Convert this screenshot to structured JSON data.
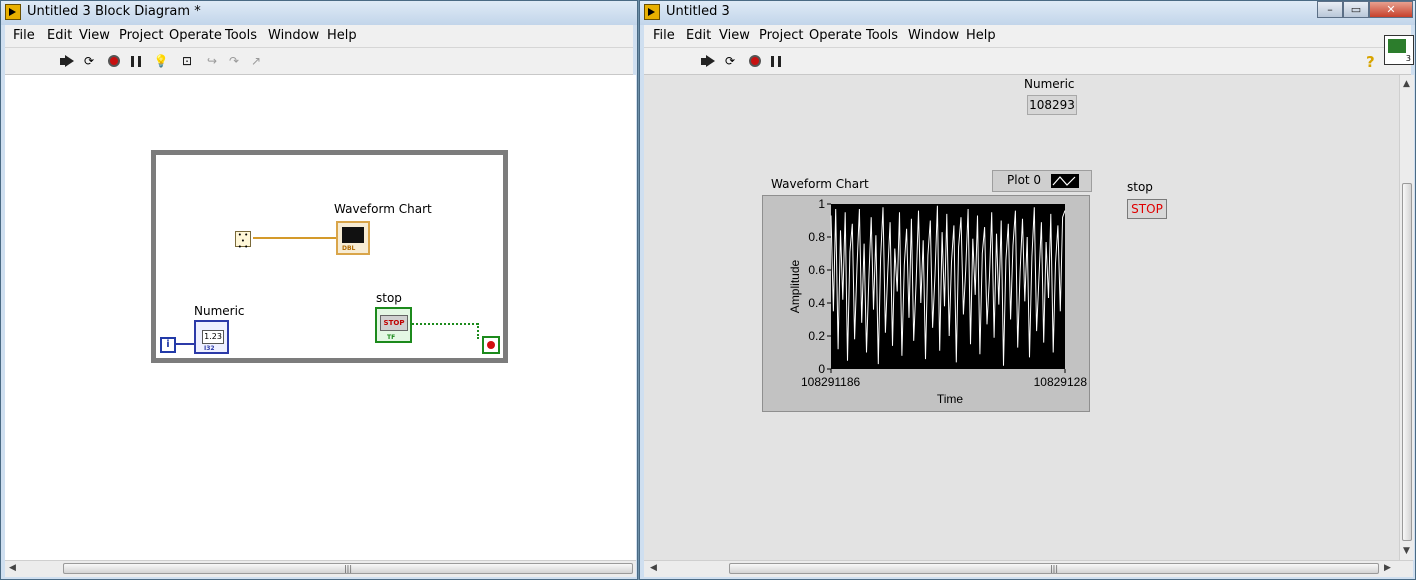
{
  "block_diagram": {
    "title": "Untitled 3 Block Diagram *",
    "menu": [
      "File",
      "Edit",
      "View",
      "Project",
      "Operate",
      "Tools",
      "Window",
      "Help"
    ],
    "labels": {
      "waveform_chart": "Waveform Chart",
      "numeric": "Numeric",
      "stop": "stop",
      "iteration": "i",
      "numeric_display": "1.23",
      "chart_type": "DBL",
      "numeric_type": "I32",
      "stop_button": "STOP",
      "stop_type": "TF"
    }
  },
  "front_panel": {
    "title": "Untitled 3",
    "menu": [
      "File",
      "Edit",
      "View",
      "Project",
      "Operate",
      "Tools",
      "Window",
      "Help"
    ],
    "vi_icon_number": "3",
    "numeric": {
      "label": "Numeric",
      "value": "108293"
    },
    "stop": {
      "label": "stop",
      "button": "STOP"
    },
    "waveform_chart": {
      "label": "Waveform Chart",
      "legend": "Plot 0"
    }
  },
  "colors": {
    "plot_background": "#000000",
    "trace": "#ffffff",
    "chart_frame": "#c2c2c2",
    "stop_text": "#e00000",
    "panel": "#e3e3e3"
  },
  "chart_data": {
    "type": "line",
    "title": "Waveform Chart",
    "xlabel": "Time",
    "ylabel": "Amplitude",
    "ylim": [
      0,
      1
    ],
    "xlim": [
      108291186,
      108291286
    ],
    "x_tick_labels": [
      "108291186",
      "10829128"
    ],
    "y_tick_labels": [
      "0",
      "0.2",
      "0.4",
      "0.6",
      "0.8",
      "1"
    ],
    "series": [
      {
        "name": "Plot 0",
        "values": [
          0.93,
          0.35,
          0.97,
          0.12,
          0.84,
          0.42,
          0.95,
          0.05,
          0.71,
          0.88,
          0.18,
          0.62,
          0.97,
          0.28,
          0.76,
          0.1,
          0.54,
          0.92,
          0.36,
          0.81,
          0.03,
          0.67,
          0.98,
          0.22,
          0.58,
          0.89,
          0.14,
          0.73,
          0.47,
          0.95,
          0.08,
          0.63,
          0.85,
          0.31,
          0.91,
          0.17,
          0.52,
          0.96,
          0.4,
          0.78,
          0.06,
          0.69,
          0.9,
          0.25,
          0.57,
          0.99,
          0.11,
          0.83,
          0.38,
          0.94,
          0.2,
          0.65,
          0.87,
          0.04,
          0.74,
          0.92,
          0.33,
          0.6,
          0.97,
          0.15,
          0.79,
          0.45,
          0.93,
          0.09,
          0.7,
          0.86,
          0.27,
          0.55,
          0.95,
          0.19,
          0.82,
          0.39,
          0.9,
          0.02,
          0.66,
          0.88,
          0.3,
          0.75,
          0.96,
          0.13,
          0.59,
          0.91,
          0.41,
          0.8,
          0.07,
          0.68,
          0.98,
          0.23,
          0.56,
          0.89,
          0.16,
          0.77,
          0.43,
          0.94,
          0.1,
          0.64,
          0.87,
          0.35,
          0.92,
          0.96
        ]
      }
    ],
    "grid": false,
    "legend": "top-right"
  }
}
